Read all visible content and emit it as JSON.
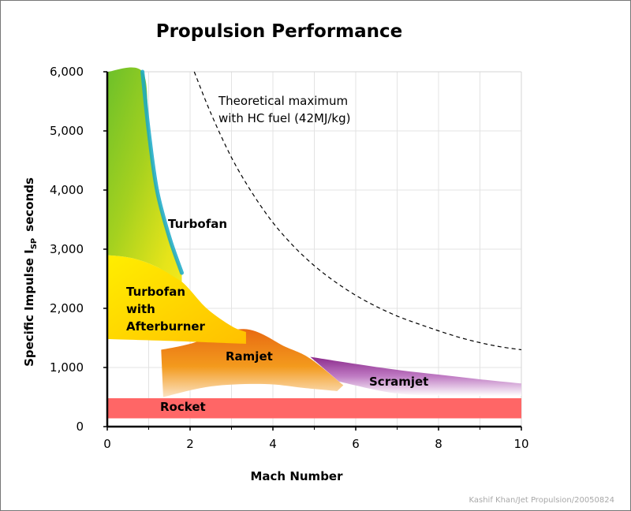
{
  "chart_data": {
    "type": "area",
    "title": "Propulsion Performance",
    "xlabel": "Mach Number",
    "ylabel_main": "Specific Impulse I",
    "ylabel_sub": "SP",
    "ylabel_unit": "seconds",
    "xlim": [
      0,
      10
    ],
    "ylim": [
      0,
      6000
    ],
    "x_ticks": [
      0,
      2,
      4,
      6,
      8,
      10
    ],
    "x_tick_labels": [
      "0",
      "2",
      "4",
      "6",
      "8",
      "10"
    ],
    "y_ticks": [
      0,
      1000,
      2000,
      3000,
      4000,
      5000,
      6000
    ],
    "y_tick_labels": [
      "0",
      "1,000",
      "2,000",
      "3,000",
      "4,000",
      "5,000",
      "6,000"
    ],
    "grid": true,
    "regions": [
      {
        "name": "Turbofan",
        "colors": [
          "#6cc02a",
          "#a5d11f",
          "#e6e41a",
          "#18a8c8"
        ],
        "upper": [
          [
            0,
            6000
          ],
          [
            0.85,
            6000
          ],
          [
            1.0,
            5000
          ],
          [
            1.2,
            4000
          ],
          [
            1.5,
            3200
          ],
          [
            1.8,
            2600
          ]
        ],
        "lower": [
          [
            0,
            2900
          ],
          [
            0.6,
            2850
          ],
          [
            1.2,
            2700
          ],
          [
            1.8,
            2450
          ]
        ]
      },
      {
        "name": "Turbofan with Afterburner",
        "colors": [
          "#ffee00",
          "#ffc800"
        ],
        "upper": [
          [
            0,
            2900
          ],
          [
            0.6,
            2850
          ],
          [
            1.2,
            2700
          ],
          [
            1.8,
            2450
          ],
          [
            2.4,
            2000
          ],
          [
            3.0,
            1700
          ],
          [
            3.35,
            1600
          ]
        ],
        "lower": [
          [
            0,
            1480
          ],
          [
            1.5,
            1450
          ],
          [
            3.35,
            1400
          ]
        ]
      },
      {
        "name": "Ramjet",
        "colors": [
          "#e86a12",
          "#f39a1d",
          "#f7c884"
        ],
        "upper": [
          [
            1.3,
            1300
          ],
          [
            2.0,
            1400
          ],
          [
            3.3,
            1650
          ],
          [
            4.3,
            1350
          ],
          [
            4.9,
            1150
          ],
          [
            5.7,
            700
          ]
        ],
        "lower": [
          [
            1.35,
            500
          ],
          [
            2.5,
            680
          ],
          [
            3.8,
            720
          ],
          [
            4.8,
            650
          ],
          [
            5.55,
            600
          ]
        ]
      },
      {
        "name": "Scramjet",
        "colors": [
          "#8b2a8c",
          "#b06bb6",
          "#ffffff"
        ],
        "upper": [
          [
            4.9,
            1180
          ],
          [
            6.0,
            1060
          ],
          [
            7.0,
            960
          ],
          [
            8.0,
            880
          ],
          [
            9.0,
            800
          ],
          [
            10,
            730
          ]
        ],
        "lower": [
          [
            5.6,
            760
          ],
          [
            7.0,
            560
          ],
          [
            8.5,
            520
          ],
          [
            10,
            520
          ]
        ]
      },
      {
        "name": "Rocket",
        "colors": [
          "#ff6666"
        ],
        "upper": [
          [
            0,
            480
          ],
          [
            10,
            480
          ]
        ],
        "lower": [
          [
            0,
            140
          ],
          [
            10,
            140
          ]
        ]
      }
    ],
    "theoretical_max": {
      "label_line1": "Theoretical maximum",
      "label_line2": "with HC fuel (42MJ/kg)",
      "points": [
        [
          2.1,
          6000
        ],
        [
          2.5,
          5300
        ],
        [
          3.0,
          4550
        ],
        [
          3.5,
          3950
        ],
        [
          4.0,
          3450
        ],
        [
          4.5,
          3050
        ],
        [
          5.0,
          2720
        ],
        [
          5.5,
          2450
        ],
        [
          6.0,
          2220
        ],
        [
          6.5,
          2030
        ],
        [
          7.0,
          1870
        ],
        [
          7.5,
          1740
        ],
        [
          8.0,
          1620
        ],
        [
          8.5,
          1510
        ],
        [
          9.0,
          1420
        ],
        [
          9.5,
          1350
        ],
        [
          10,
          1300
        ]
      ]
    },
    "labels": {
      "turbofan": "Turbofan",
      "afterburner_1": "Turbofan",
      "afterburner_2": "with",
      "afterburner_3": "Afterburner",
      "ramjet": "Ramjet",
      "scramjet": "Scramjet",
      "rocket": "Rocket"
    },
    "credit": "Kashif Khan/Jet Propulsion/20050824"
  }
}
